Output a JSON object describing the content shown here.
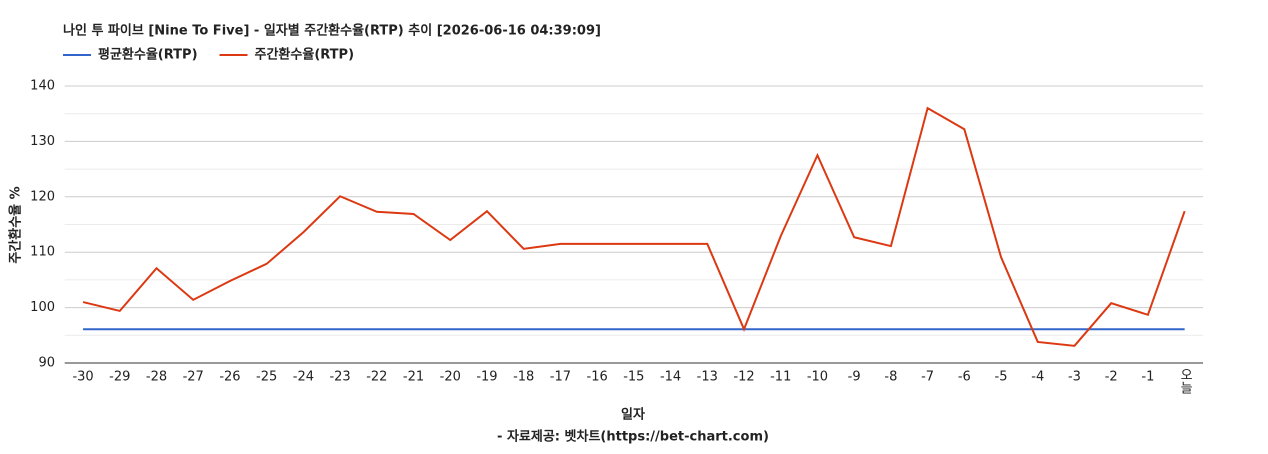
{
  "chart_data": {
    "type": "line",
    "title": "나인 투 파이브 [Nine To Five] - 일자별 주간환수율(RTP) 추이 [2026-06-16 04:39:09]",
    "x_label": "일자",
    "y_label": "주간환수율 %",
    "source": "- 자료제공: 벳차트(https://bet-chart.com)",
    "categories": [
      "-30",
      "-29",
      "-28",
      "-27",
      "-26",
      "-25",
      "-24",
      "-23",
      "-22",
      "-21",
      "-20",
      "-19",
      "-18",
      "-17",
      "-16",
      "-15",
      "-14",
      "-13",
      "-12",
      "-11",
      "-10",
      "-9",
      "-8",
      "-7",
      "-6",
      "-5",
      "-4",
      "-3",
      "-2",
      "-1",
      "오늘"
    ],
    "series": [
      {
        "name": "평균환수율(RTP)",
        "color": "#3366cc",
        "values": [
          96.1,
          96.1,
          96.1,
          96.1,
          96.1,
          96.1,
          96.1,
          96.1,
          96.1,
          96.1,
          96.1,
          96.1,
          96.1,
          96.1,
          96.1,
          96.1,
          96.1,
          96.1,
          96.1,
          96.1,
          96.1,
          96.1,
          96.1,
          96.1,
          96.1,
          96.1,
          96.1,
          96.1,
          96.1,
          96.1,
          96.1
        ]
      },
      {
        "name": "주간환수율(RTP)",
        "color": "#dc3912",
        "values": [
          101.0,
          99.4,
          107.1,
          101.4,
          104.8,
          107.9,
          113.6,
          120.1,
          117.3,
          116.9,
          112.2,
          117.4,
          110.6,
          111.5,
          111.5,
          111.5,
          111.5,
          111.5,
          96.1,
          112.9,
          127.5,
          112.7,
          111.1,
          136.0,
          132.2,
          109.1,
          93.8,
          93.1,
          100.8,
          98.7,
          117.4
        ]
      }
    ],
    "ylim": [
      90,
      140
    ],
    "yticks": [
      90,
      100,
      110,
      120,
      130,
      140
    ],
    "minor_yticks": [
      95,
      105,
      115,
      125,
      135
    ],
    "grid": true
  }
}
